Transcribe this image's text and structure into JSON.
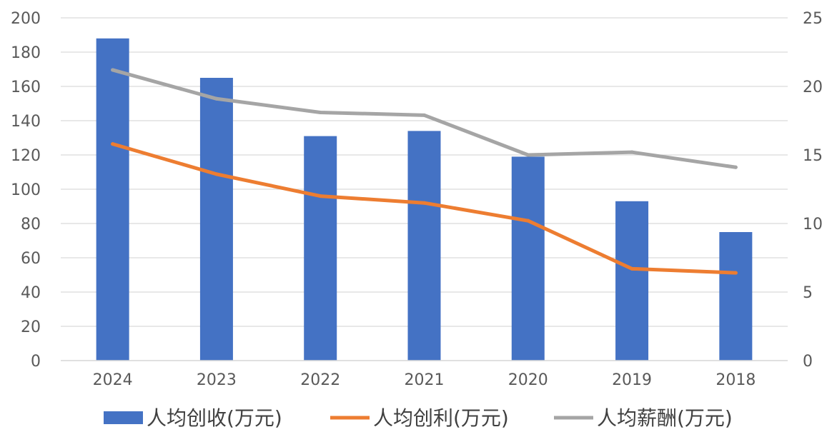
{
  "chart_data": {
    "type": "bar",
    "categories": [
      "2024",
      "2023",
      "2022",
      "2021",
      "2020",
      "2019",
      "2018"
    ],
    "series": [
      {
        "name": "人均创收(万元)",
        "type": "bar",
        "axis": "left",
        "color": "#4472C4",
        "values": [
          188,
          165,
          131,
          134,
          119,
          93,
          75
        ]
      },
      {
        "name": "人均创利(万元)",
        "type": "line",
        "axis": "right",
        "color": "#ED7D31",
        "values": [
          15.8,
          13.6,
          12.0,
          11.5,
          10.2,
          6.7,
          6.4
        ]
      },
      {
        "name": "人均薪酬(万元)",
        "type": "line",
        "axis": "right",
        "color": "#A5A5A5",
        "values": [
          21.2,
          19.1,
          18.1,
          17.9,
          15.0,
          15.2,
          14.1
        ]
      }
    ],
    "y_left": {
      "min": 0,
      "max": 200,
      "step": 20,
      "ticks": [
        "0",
        "20",
        "40",
        "60",
        "80",
        "100",
        "120",
        "140",
        "160",
        "180",
        "200"
      ]
    },
    "y_right": {
      "min": 0,
      "max": 25,
      "step": 5,
      "ticks": [
        "0",
        "5",
        "10",
        "15",
        "20",
        "25"
      ]
    },
    "grid": true,
    "legend": "bottom"
  }
}
